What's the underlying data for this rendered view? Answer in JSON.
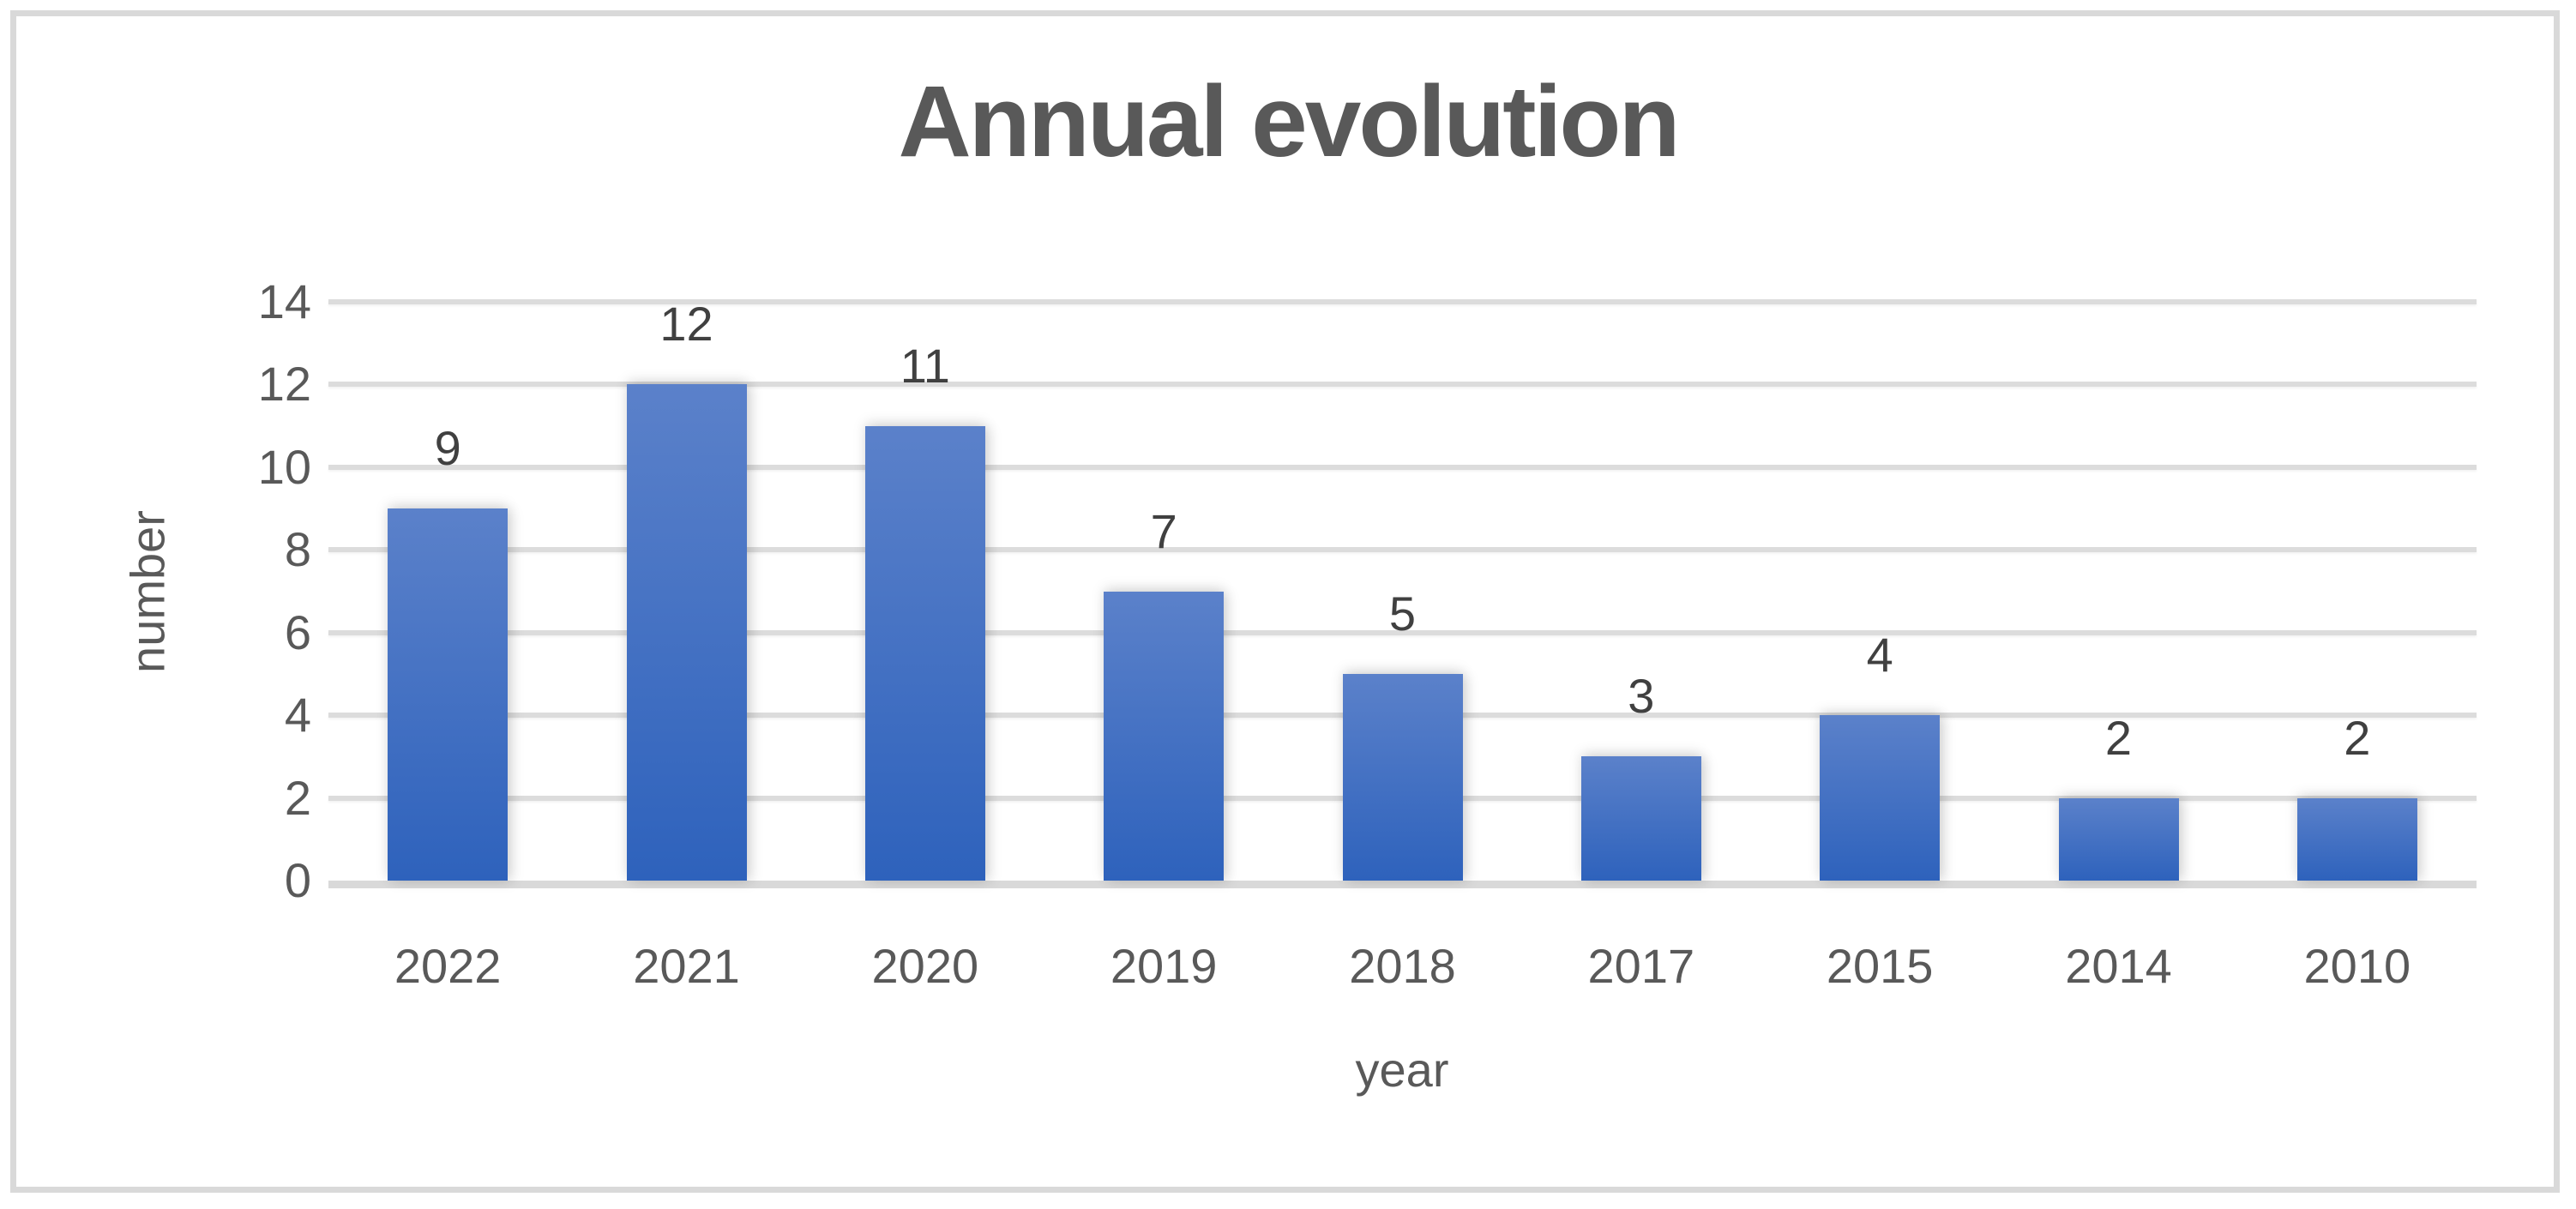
{
  "chart_data": {
    "type": "bar",
    "title": "Annual evolution",
    "xlabel": "year",
    "ylabel": "number",
    "categories": [
      "2022",
      "2021",
      "2020",
      "2019",
      "2018",
      "2017",
      "2015",
      "2014",
      "2010"
    ],
    "values": [
      9,
      12,
      11,
      7,
      5,
      3,
      4,
      2,
      2
    ],
    "ylim": [
      0,
      14
    ],
    "yticks": [
      0,
      2,
      4,
      6,
      8,
      10,
      12,
      14
    ],
    "grid": true,
    "legend": false,
    "colors": {
      "bar_gradient_top": "#5b81ca",
      "bar_gradient_bottom": "#2e62bc",
      "gridline": "#dcdcdc",
      "axis_line": "#d9d9d9",
      "frame_border": "#d9d9d9",
      "title_text": "#595959",
      "tick_text": "#595959",
      "data_label_text": "#404040",
      "background": "#ffffff"
    }
  }
}
